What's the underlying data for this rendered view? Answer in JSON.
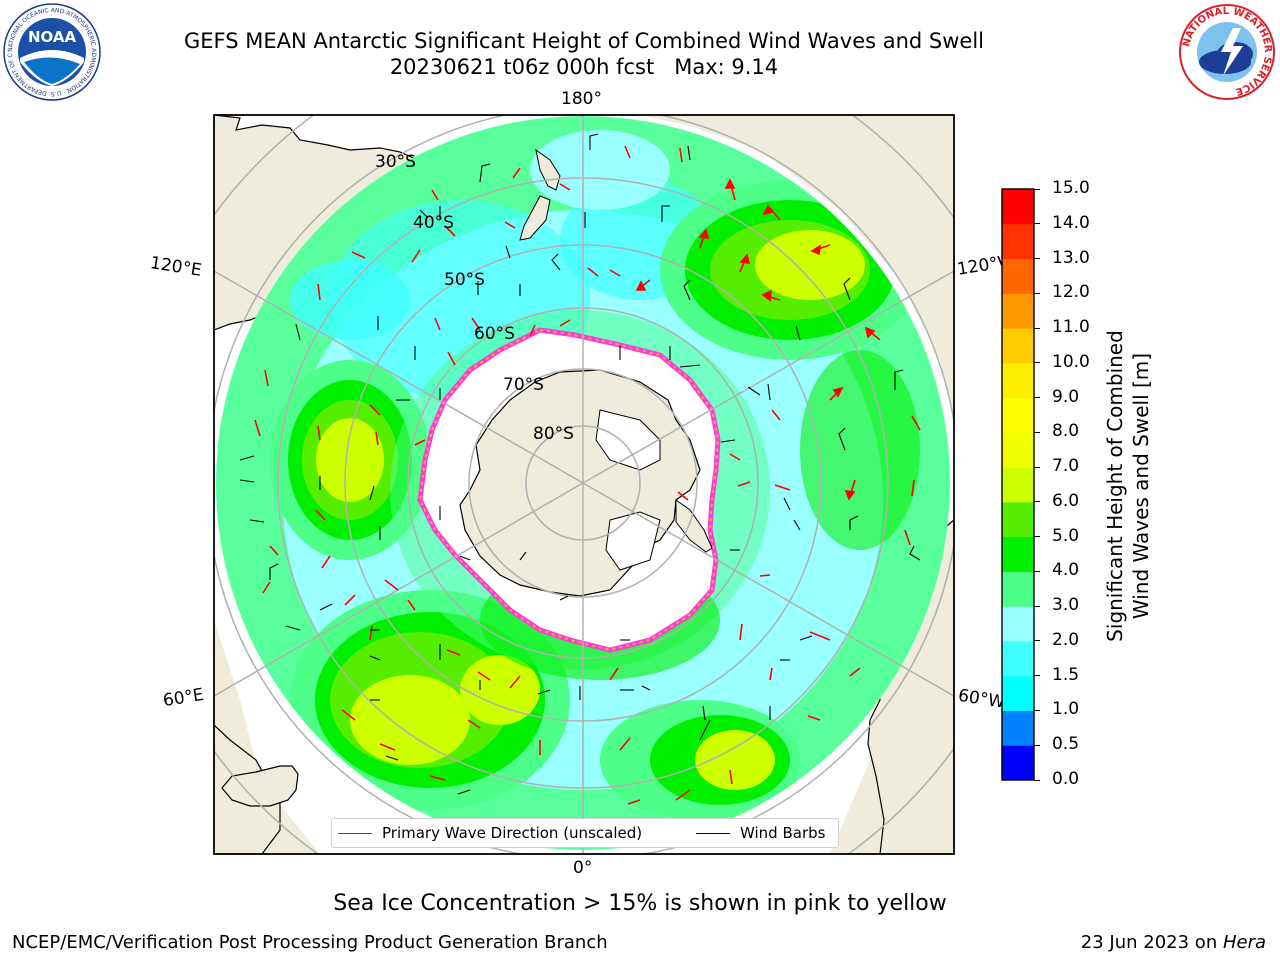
{
  "title": {
    "line1": "GEFS MEAN Antarctic Significant Height of Combined Wind Waves and Swell",
    "line2": "20230621 t06z 000h fcst   Max: 9.14"
  },
  "logos": {
    "noaa_text": "NOAA",
    "noaa_ring": "NATIONAL OCEANIC AND ATMOSPHERIC ADMINISTRATION · U.S. DEPARTMENT OF COMMERCE",
    "nws_ring": "NATIONAL WEATHER SERVICE"
  },
  "map": {
    "projection": "south-polar-stereographic",
    "longitude_labels": {
      "top": "180°",
      "upper_left": "120°E",
      "upper_right": "120°W",
      "lower_left": "60°E",
      "lower_right": "60°W",
      "bottom": "0°"
    },
    "latitude_labels": [
      "30°S",
      "40°S",
      "50°S",
      "60°S",
      "70°S",
      "80°S"
    ],
    "land_color": "#efecdc",
    "ice_color": "#ffffff",
    "ice_edge_colors": [
      "#ff3bd6",
      "#ffa94d"
    ]
  },
  "legend": {
    "primary_wave": "Primary Wave Direction (unscaled)",
    "wind_barbs": "Wind Barbs",
    "primary_wave_color": "#ff0000",
    "wind_barbs_color": "#000000"
  },
  "colorbar": {
    "label_line1": "Significant Height of Combined",
    "label_line2": "Wind Waves and Swell [m]",
    "ticks": [
      "0.0",
      "0.5",
      "1.0",
      "1.5",
      "2.0",
      "3.0",
      "4.0",
      "5.0",
      "6.0",
      "7.0",
      "8.0",
      "9.0",
      "10.0",
      "11.0",
      "12.0",
      "13.0",
      "14.0",
      "15.0"
    ],
    "colors": [
      "#0000ff",
      "#0080ff",
      "#00ffff",
      "#40ffff",
      "#99ffff",
      "#4dff88",
      "#00ee00",
      "#55ee00",
      "#ccff00",
      "#eeff00",
      "#ffff00",
      "#ffee00",
      "#ffcc00",
      "#ff9900",
      "#ff6600",
      "#ff3300",
      "#ff0000"
    ]
  },
  "chart_data": {
    "type": "heatmap",
    "variable": "Significant Height of Combined Wind Waves and Swell",
    "units": "m",
    "max_value": 9.14,
    "color_range": [
      0,
      15
    ]
  },
  "ice_note": "Sea Ice Concentration > 15% is shown in pink to yellow",
  "footer": {
    "left": "NCEP/EMC/Verification Post Processing Product Generation Branch",
    "right_date": "23 Jun 2023 on ",
    "right_host": "Hera"
  }
}
